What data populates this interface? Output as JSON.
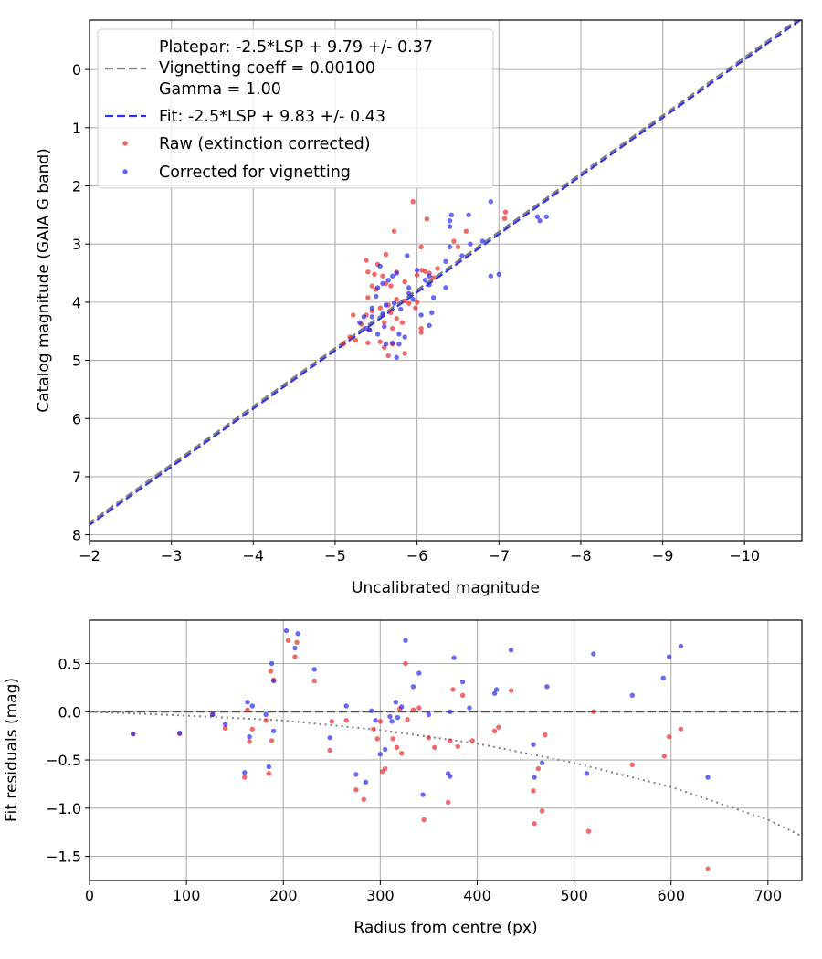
{
  "chart_data": [
    {
      "type": "scatter",
      "xlabel": "Uncalibrated magnitude",
      "ylabel": "Catalog magnitude (GAIA G band)",
      "xlim": [
        -2,
        -10.7
      ],
      "ylim": [
        8.1,
        -0.85
      ],
      "xticks": [
        "−2",
        "−3",
        "−4",
        "−5",
        "−6",
        "−7",
        "−8",
        "−9",
        "−10"
      ],
      "xtick_values": [
        -2,
        -3,
        -4,
        -5,
        -6,
        -7,
        -8,
        -9,
        -10
      ],
      "yticks": [
        "0",
        "1",
        "2",
        "3",
        "4",
        "5",
        "6",
        "7",
        "8"
      ],
      "ytick_values": [
        0,
        1,
        2,
        3,
        4,
        5,
        6,
        7,
        8
      ],
      "grid": true,
      "legend_position": "top-left",
      "legend": {
        "platepar_line1": "Platepar: -2.5*LSP + 9.79 +/- 0.37",
        "platepar_line2": "Vignetting coeff = 0.00100",
        "platepar_line3": "Gamma = 1.00",
        "fit": "Fit: -2.5*LSP + 9.83 +/- 0.43",
        "raw": "Raw (extinction corrected)",
        "corrected": "Corrected for vignetting"
      },
      "lines": [
        {
          "name": "platepar",
          "slope": 1.0,
          "intercept": 9.79,
          "color": "#808080",
          "style": "dashed"
        },
        {
          "name": "fit",
          "slope": 1.0,
          "intercept": 9.83,
          "color": "#3333ee",
          "style": "dashed"
        }
      ],
      "series": [
        {
          "name": "raw",
          "color": "#ee2222",
          "points": [
            [
              -5.95,
              2.27
            ],
            [
              -6.12,
              2.57
            ],
            [
              -7.08,
              2.45
            ],
            [
              -7.07,
              2.56
            ],
            [
              -5.72,
              2.78
            ],
            [
              -6.05,
              3.05
            ],
            [
              -6.6,
              2.78
            ],
            [
              -6.45,
              2.95
            ],
            [
              -6.5,
              3.05
            ],
            [
              -5.62,
              3.18
            ],
            [
              -5.38,
              3.28
            ],
            [
              -5.52,
              3.35
            ],
            [
              -5.4,
              3.48
            ],
            [
              -5.48,
              3.52
            ],
            [
              -5.75,
              3.48
            ],
            [
              -6.06,
              3.45
            ],
            [
              -6.1,
              3.47
            ],
            [
              -6.15,
              3.5
            ],
            [
              -6.25,
              3.42
            ],
            [
              -6.0,
              3.53
            ],
            [
              -6.2,
              3.58
            ],
            [
              -5.58,
              3.55
            ],
            [
              -5.62,
              3.68
            ],
            [
              -5.68,
              3.72
            ],
            [
              -5.85,
              3.65
            ],
            [
              -5.45,
              3.72
            ],
            [
              -5.5,
              3.78
            ],
            [
              -5.4,
              3.92
            ],
            [
              -5.75,
              3.95
            ],
            [
              -5.85,
              3.98
            ],
            [
              -6.0,
              4.0
            ],
            [
              -5.98,
              4.1
            ],
            [
              -5.65,
              4.05
            ],
            [
              -5.55,
              4.1
            ],
            [
              -5.68,
              4.18
            ],
            [
              -5.45,
              4.15
            ],
            [
              -5.38,
              4.22
            ],
            [
              -5.22,
              4.22
            ],
            [
              -5.75,
              4.28
            ],
            [
              -5.82,
              4.35
            ],
            [
              -5.6,
              4.35
            ],
            [
              -5.42,
              4.48
            ],
            [
              -5.32,
              4.38
            ],
            [
              -6.05,
              4.45
            ],
            [
              -6.05,
              4.52
            ],
            [
              -5.18,
              4.6
            ],
            [
              -5.25,
              4.65
            ],
            [
              -5.4,
              4.7
            ],
            [
              -5.55,
              4.68
            ],
            [
              -5.7,
              4.72
            ],
            [
              -5.6,
              4.78
            ],
            [
              -5.85,
              4.88
            ],
            [
              -5.65,
              4.92
            ],
            [
              -5.1,
              4.72
            ],
            [
              -5.9,
              4.02
            ],
            [
              -5.7,
              4.45
            ]
          ]
        },
        {
          "name": "corrected",
          "color": "#2222ee",
          "points": [
            [
              -6.9,
              2.27
            ],
            [
              -6.42,
              2.5
            ],
            [
              -6.63,
              2.5
            ],
            [
              -7.47,
              2.53
            ],
            [
              -7.58,
              2.53
            ],
            [
              -7.5,
              2.6
            ],
            [
              -6.4,
              2.6
            ],
            [
              -6.4,
              2.7
            ],
            [
              -6.4,
              3.05
            ],
            [
              -6.8,
              2.95
            ],
            [
              -6.65,
              3.0
            ],
            [
              -6.55,
              3.2
            ],
            [
              -6.35,
              3.3
            ],
            [
              -6.9,
              3.55
            ],
            [
              -7.0,
              3.52
            ],
            [
              -5.88,
              3.2
            ],
            [
              -5.55,
              3.38
            ],
            [
              -6.0,
              3.45
            ],
            [
              -6.15,
              3.55
            ],
            [
              -6.1,
              3.62
            ],
            [
              -6.15,
              3.7
            ],
            [
              -6.35,
              3.75
            ],
            [
              -5.75,
              3.5
            ],
            [
              -5.7,
              3.55
            ],
            [
              -5.65,
              3.62
            ],
            [
              -5.58,
              3.68
            ],
            [
              -5.52,
              3.75
            ],
            [
              -5.5,
              3.9
            ],
            [
              -5.9,
              3.85
            ],
            [
              -5.95,
              3.95
            ],
            [
              -5.72,
              4.02
            ],
            [
              -5.8,
              4.12
            ],
            [
              -5.62,
              4.05
            ],
            [
              -5.45,
              4.1
            ],
            [
              -5.58,
              4.2
            ],
            [
              -5.45,
              4.25
            ],
            [
              -5.35,
              4.25
            ],
            [
              -5.3,
              4.35
            ],
            [
              -5.38,
              4.45
            ],
            [
              -5.6,
              4.42
            ],
            [
              -5.78,
              4.55
            ],
            [
              -5.85,
              4.6
            ],
            [
              -6.15,
              4.4
            ],
            [
              -6.05,
              4.22
            ],
            [
              -6.18,
              4.18
            ],
            [
              -5.7,
              4.7
            ],
            [
              -5.78,
              4.72
            ],
            [
              -5.75,
              4.95
            ],
            [
              -5.62,
              4.72
            ],
            [
              -5.52,
              4.55
            ],
            [
              -6.2,
              3.92
            ],
            [
              -5.9,
              3.75
            ],
            [
              -5.42,
              4.48
            ]
          ]
        }
      ]
    },
    {
      "type": "scatter",
      "xlabel": "Radius from centre (px)",
      "ylabel": "Fit residuals (mag)",
      "xlim": [
        0,
        735
      ],
      "ylim": [
        -1.75,
        0.95
      ],
      "xticks": [
        "0",
        "100",
        "200",
        "300",
        "400",
        "500",
        "600",
        "700"
      ],
      "xtick_values": [
        0,
        100,
        200,
        300,
        400,
        500,
        600,
        700
      ],
      "yticks": [
        "0.5",
        "0.0",
        "−0.5",
        "−1.0",
        "−1.5"
      ],
      "ytick_values": [
        0.5,
        0.0,
        -0.5,
        -1.0,
        -1.5
      ],
      "grid": true,
      "zero_line": {
        "value": 0.0,
        "color": "#555555",
        "style": "dashed"
      },
      "model_curve": {
        "color": "#808080",
        "style": "dotted",
        "points": [
          [
            0,
            0.0
          ],
          [
            100,
            -0.04
          ],
          [
            200,
            -0.09
          ],
          [
            300,
            -0.19
          ],
          [
            400,
            -0.33
          ],
          [
            500,
            -0.53
          ],
          [
            600,
            -0.78
          ],
          [
            700,
            -1.12
          ],
          [
            735,
            -1.29
          ]
        ]
      },
      "series": [
        {
          "name": "raw",
          "color": "#ee2222",
          "points": [
            [
              45,
              -0.23
            ],
            [
              93,
              -0.23
            ],
            [
              127,
              -0.03
            ],
            [
              140,
              -0.17
            ],
            [
              160,
              -0.68
            ],
            [
              163,
              0.02
            ],
            [
              165,
              -0.31
            ],
            [
              168,
              -0.18
            ],
            [
              185,
              -0.64
            ],
            [
              187,
              0.42
            ],
            [
              188,
              -0.3
            ],
            [
              190,
              0.33
            ],
            [
              182,
              -0.09
            ],
            [
              205,
              0.74
            ],
            [
              212,
              0.57
            ],
            [
              214,
              0.72
            ],
            [
              232,
              0.32
            ],
            [
              248,
              -0.4
            ],
            [
              265,
              -0.09
            ],
            [
              275,
              -0.81
            ],
            [
              283,
              -0.91
            ],
            [
              293,
              -0.18
            ],
            [
              297,
              -0.28
            ],
            [
              302,
              -0.62
            ],
            [
              305,
              -0.59
            ],
            [
              313,
              -0.28
            ],
            [
              317,
              -0.37
            ],
            [
              320,
              0.03
            ],
            [
              322,
              -0.43
            ],
            [
              326,
              0.5
            ],
            [
              328,
              -0.08
            ],
            [
              334,
              0.02
            ],
            [
              340,
              0.04
            ],
            [
              345,
              -1.12
            ],
            [
              350,
              -0.27
            ],
            [
              356,
              -0.37
            ],
            [
              370,
              -0.94
            ],
            [
              372,
              -0.3
            ],
            [
              375,
              0.23
            ],
            [
              380,
              -0.36
            ],
            [
              385,
              0.17
            ],
            [
              395,
              -0.3
            ],
            [
              418,
              -0.2
            ],
            [
              422,
              -0.16
            ],
            [
              435,
              0.22
            ],
            [
              458,
              -0.82
            ],
            [
              459,
              -1.16
            ],
            [
              463,
              -0.59
            ],
            [
              467,
              -1.03
            ],
            [
              470,
              -0.24
            ],
            [
              515,
              -1.24
            ],
            [
              520,
              0.0
            ],
            [
              560,
              -0.55
            ],
            [
              593,
              -0.46
            ],
            [
              598,
              -0.26
            ],
            [
              610,
              -0.18
            ],
            [
              638,
              -1.63
            ],
            [
              300,
              -0.1
            ],
            [
              250,
              -0.1
            ]
          ]
        },
        {
          "name": "corrected",
          "color": "#2222ee",
          "points": [
            [
              45,
              -0.23
            ],
            [
              93,
              -0.22
            ],
            [
              127,
              -0.03
            ],
            [
              140,
              -0.13
            ],
            [
              160,
              -0.63
            ],
            [
              163,
              0.1
            ],
            [
              165,
              -0.26
            ],
            [
              168,
              0.06
            ],
            [
              182,
              -0.03
            ],
            [
              185,
              -0.57
            ],
            [
              188,
              0.5
            ],
            [
              190,
              0.32
            ],
            [
              190,
              -0.2
            ],
            [
              203,
              0.84
            ],
            [
              212,
              0.66
            ],
            [
              215,
              0.81
            ],
            [
              232,
              0.44
            ],
            [
              248,
              -0.27
            ],
            [
              265,
              0.06
            ],
            [
              275,
              -0.65
            ],
            [
              285,
              -0.73
            ],
            [
              291,
              0.01
            ],
            [
              295,
              -0.09
            ],
            [
              300,
              -0.44
            ],
            [
              305,
              -0.39
            ],
            [
              310,
              -0.05
            ],
            [
              312,
              -0.1
            ],
            [
              316,
              0.1
            ],
            [
              318,
              -0.06
            ],
            [
              322,
              0.05
            ],
            [
              326,
              0.74
            ],
            [
              334,
              0.26
            ],
            [
              340,
              0.4
            ],
            [
              344,
              -0.86
            ],
            [
              350,
              -0.03
            ],
            [
              372,
              0.0
            ],
            [
              370,
              -0.64
            ],
            [
              372,
              -0.67
            ],
            [
              376,
              0.56
            ],
            [
              385,
              0.31
            ],
            [
              392,
              0.04
            ],
            [
              418,
              0.19
            ],
            [
              420,
              0.23
            ],
            [
              435,
              0.64
            ],
            [
              458,
              -0.34
            ],
            [
              459,
              -0.68
            ],
            [
              467,
              -0.53
            ],
            [
              472,
              0.26
            ],
            [
              513,
              -0.64
            ],
            [
              520,
              0.6
            ],
            [
              560,
              0.17
            ],
            [
              592,
              0.35
            ],
            [
              598,
              0.57
            ],
            [
              610,
              0.68
            ],
            [
              638,
              -0.68
            ]
          ]
        }
      ]
    }
  ]
}
